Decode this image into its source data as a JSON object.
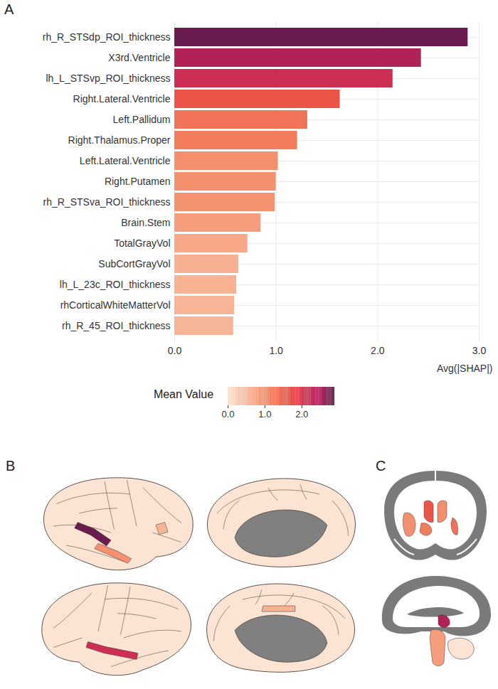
{
  "chart_data": {
    "panel": "A",
    "type": "bar",
    "orientation": "horizontal",
    "categories": [
      "rh_R_STSdp_ROI_thickness",
      "X3rd.Ventricle",
      "lh_L_STSvp_ROI_thickness",
      "Right.Lateral.Ventricle",
      "Left.Pallidum",
      "Right.Thalamus.Proper",
      "Left.Lateral.Ventricle",
      "Right.Putamen",
      "rh_R_STSva_ROI_thickness",
      "Brain.Stem",
      "TotalGrayVol",
      "SubCortGrayVol",
      "lh_L_23c_ROI_thickness",
      "rhCorticalWhiteMatterVol",
      "rh_R_45_ROI_thickness"
    ],
    "values": [
      2.89,
      2.43,
      2.15,
      1.63,
      1.31,
      1.21,
      1.02,
      1.0,
      0.99,
      0.85,
      0.72,
      0.63,
      0.61,
      0.59,
      0.58
    ],
    "x_label": "Avg(|SHAP|)",
    "xlim": [
      0,
      3
    ],
    "xticks": [
      0,
      1,
      2,
      3
    ],
    "grid": true,
    "colorbar": {
      "label": "Mean Value",
      "range": [
        0,
        2.89
      ],
      "ticks": [
        0,
        1,
        2
      ]
    }
  },
  "brain_maps": {
    "panel": "B",
    "views": [
      [
        "rh_R_STSdp_ROI_thickness",
        "rh_R_STSva_ROI_thickness",
        "rh_R_45_ROI_thickness"
      ],
      [],
      [
        "lh_L_STSvp_ROI_thickness"
      ],
      [
        "lh_L_23c_ROI_thickness"
      ]
    ]
  },
  "subcortical": {
    "panel": "C",
    "views": [
      [
        "Right.Lateral.Ventricle",
        "Left.Lateral.Ventricle",
        "Right.Thalamus.Proper",
        "Left.Pallidum",
        "Right.Putamen"
      ],
      [
        "X3rd.Ventricle",
        "Brain.Stem"
      ]
    ]
  }
}
